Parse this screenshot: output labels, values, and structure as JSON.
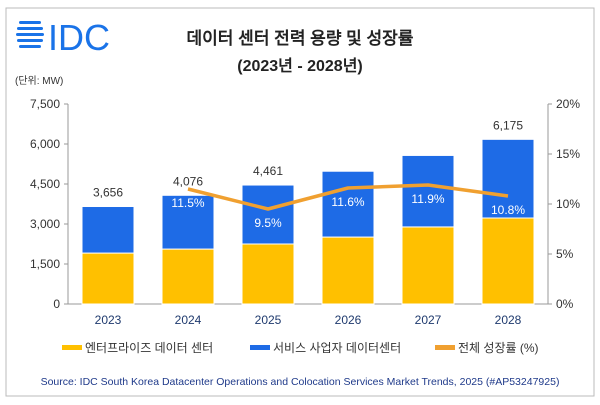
{
  "logo": {
    "text": "IDC",
    "color": "#1a73e8"
  },
  "unit_label": "(단위: MW)",
  "source": "Source: IDC South Korea Datacenter Operations and Colocation Services Market Trends, 2025 (#AP53247925)",
  "chart_data": {
    "type": "bar",
    "stacked": true,
    "title": "데이터 센터 전력 용량 및 성장률",
    "subtitle": "(2023년 - 2028년)",
    "categories": [
      "2023",
      "2024",
      "2025",
      "2026",
      "2027",
      "2028"
    ],
    "ylim": [
      0,
      7500
    ],
    "yticks": [
      "0",
      "1,500",
      "3,000",
      "4,500",
      "6,000",
      "7,500"
    ],
    "y2lim": [
      0,
      20
    ],
    "y2ticks": [
      "0%",
      "5%",
      "10%",
      "15%",
      "20%"
    ],
    "grid": false,
    "legend_position": "bottom",
    "series": [
      {
        "name": "엔터프라이즈 데이터 센터",
        "type": "bar",
        "color": "#ffc000",
        "values": [
          1910,
          2060,
          2250,
          2510,
          2890,
          3225
        ]
      },
      {
        "name": "서비스 사업자 데이터센터",
        "type": "bar",
        "color": "#1e6be6",
        "values": [
          1746,
          2016,
          2211,
          2469,
          2681,
          2950
        ]
      },
      {
        "name": "전체 성장률 (%)",
        "type": "line",
        "axis": "right",
        "color": "#f0a030",
        "values": [
          null,
          11.5,
          9.5,
          11.6,
          11.9,
          10.8
        ]
      }
    ],
    "total_labels": [
      "3,656",
      "4,076",
      "4,461",
      "",
      "",
      "6,175"
    ],
    "growth_labels": [
      "",
      "11.5%",
      "9.5%",
      "11.6%",
      "11.9%",
      "10.8%"
    ]
  }
}
